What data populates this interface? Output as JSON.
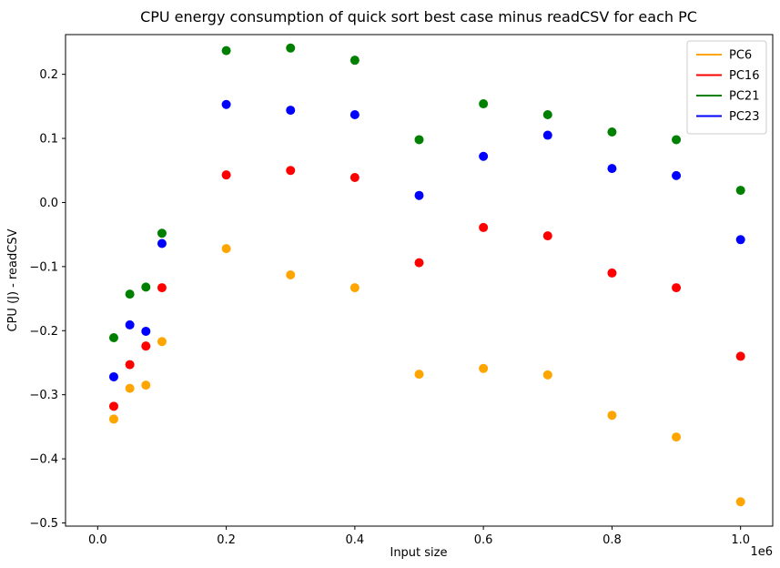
{
  "chart_data": {
    "type": "scatter",
    "title": "CPU energy consumption of quick sort best case minus readCSV for each PC",
    "xlabel": "Input size",
    "ylabel": "CPU (J) - readCSV",
    "x_offset_label": "1e6",
    "x_scale": 1000000,
    "xlim": [
      -50000,
      1050000
    ],
    "ylim": [
      -0.505,
      0.262
    ],
    "x_ticks": [
      0,
      200000,
      400000,
      600000,
      800000,
      1000000
    ],
    "x_tick_labels": [
      "0.0",
      "0.2",
      "0.4",
      "0.6",
      "0.8",
      "1.0"
    ],
    "y_ticks": [
      -0.5,
      -0.4,
      -0.3,
      -0.2,
      -0.1,
      0.0,
      0.1,
      0.2
    ],
    "y_tick_labels": [
      "−0.5",
      "−0.4",
      "−0.3",
      "−0.2",
      "−0.1",
      "0.0",
      "0.1",
      "0.2"
    ],
    "grid": false,
    "legend_position": "top-right",
    "x": [
      25000,
      50000,
      75000,
      100000,
      200000,
      300000,
      400000,
      500000,
      600000,
      700000,
      800000,
      900000,
      1000000
    ],
    "series": [
      {
        "name": "PC6",
        "color": "#ffa500",
        "values": [
          -0.338,
          -0.29,
          -0.285,
          -0.217,
          -0.072,
          -0.113,
          -0.133,
          -0.268,
          -0.259,
          -0.269,
          -0.332,
          -0.366,
          -0.467
        ]
      },
      {
        "name": "PC16",
        "color": "#ff0000",
        "values": [
          -0.318,
          -0.253,
          -0.224,
          -0.133,
          0.043,
          0.05,
          0.039,
          -0.094,
          -0.039,
          -0.052,
          -0.11,
          -0.133,
          -0.24
        ]
      },
      {
        "name": "PC21",
        "color": "#008000",
        "values": [
          -0.211,
          -0.143,
          -0.132,
          -0.048,
          0.237,
          0.241,
          0.222,
          0.098,
          0.154,
          0.137,
          0.11,
          0.098,
          0.019
        ]
      },
      {
        "name": "PC23",
        "color": "#0000ff",
        "values": [
          -0.272,
          -0.191,
          -0.201,
          -0.064,
          0.153,
          0.144,
          0.137,
          0.011,
          0.072,
          0.105,
          0.053,
          0.042,
          -0.058
        ]
      }
    ]
  }
}
